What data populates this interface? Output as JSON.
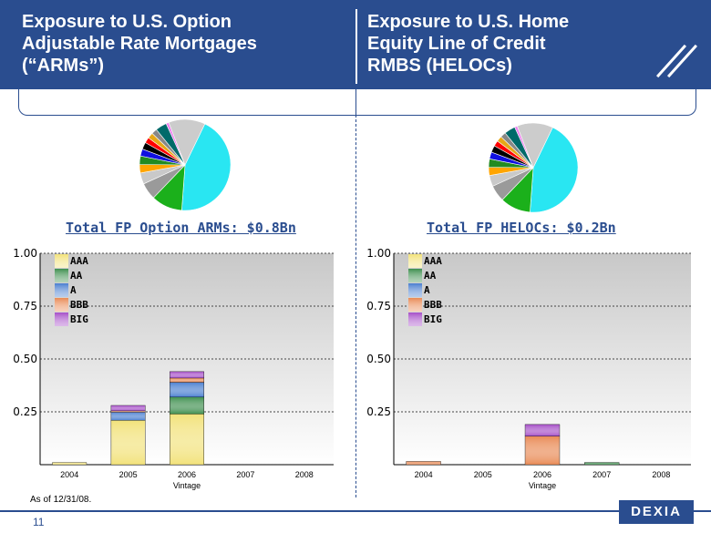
{
  "header": {
    "left_title": [
      "Exposure to U.S. Option",
      "Adjustable Rate Mortgages",
      "(“ARMs”)"
    ],
    "right_title": [
      "Exposure to U.S. Home",
      "Equity Line of Credit",
      "RMBS (HELOCs)"
    ]
  },
  "left": {
    "section_title": "Total FP Option ARMs: $0.8Bn"
  },
  "right": {
    "section_title": "Total FP HELOCs: $0.2Bn"
  },
  "footnote": "As of 12/31/08.",
  "page_number": "11",
  "logo_text": "DEXIA",
  "colors": {
    "brand": "#2a4d8f",
    "AAA": "#f2e27a",
    "AA": "#3e8f4e",
    "A": "#4a7fd0",
    "BBB": "#e98a55",
    "BIG": "#a64fc8"
  },
  "pie_colors": [
    "#29e6f2",
    "#1bb01b",
    "#9a9a9a",
    "#c9c9c9",
    "#ffa500",
    "#228b22",
    "#1010e0",
    "#000000",
    "#ff0000",
    "#e6a817",
    "#888888",
    "#006a6a",
    "#ee82ee",
    "#cccccc"
  ],
  "chart_data": [
    {
      "type": "pie",
      "values": [
        44,
        11,
        6,
        4,
        3,
        3,
        2.5,
        2.5,
        2,
        2,
        2,
        4,
        1,
        13
      ]
    },
    {
      "type": "bar",
      "stacked": true,
      "xlabel": "Vintage",
      "categories": [
        "2004",
        "2005",
        "2006",
        "2007",
        "2008"
      ],
      "y_ticks": [
        "0.25",
        "0.50",
        "0.75",
        "1.00"
      ],
      "ylim": [
        0,
        1.0
      ],
      "grid": true,
      "legend_position": "top-left",
      "series": [
        {
          "name": "AAA",
          "values": [
            0.01,
            0.21,
            0.24,
            0,
            0
          ]
        },
        {
          "name": "AA",
          "values": [
            0,
            0,
            0.08,
            0,
            0
          ]
        },
        {
          "name": "A",
          "values": [
            0,
            0.04,
            0.07,
            0,
            0
          ]
        },
        {
          "name": "BBB",
          "values": [
            0,
            0.005,
            0.02,
            0,
            0
          ]
        },
        {
          "name": "BIG",
          "values": [
            0,
            0.025,
            0.03,
            0,
            0
          ]
        }
      ]
    },
    {
      "type": "pie",
      "values": [
        44,
        11,
        6,
        4,
        3,
        3,
        2.5,
        2.5,
        2,
        2,
        2,
        4,
        1,
        13
      ]
    },
    {
      "type": "bar",
      "stacked": true,
      "xlabel": "Vintage",
      "categories": [
        "2004",
        "2005",
        "2006",
        "2007",
        "2008"
      ],
      "y_ticks": [
        "0.25",
        "0.50",
        "0.75",
        "1.00"
      ],
      "ylim": [
        0,
        1.0
      ],
      "grid": true,
      "legend_position": "top-left",
      "series": [
        {
          "name": "AAA",
          "values": [
            0,
            0,
            0,
            0,
            0
          ]
        },
        {
          "name": "AA",
          "values": [
            0,
            0,
            0,
            0.01,
            0
          ]
        },
        {
          "name": "A",
          "values": [
            0,
            0,
            0,
            0,
            0
          ]
        },
        {
          "name": "BBB",
          "values": [
            0.015,
            0,
            0.135,
            0,
            0
          ]
        },
        {
          "name": "BIG",
          "values": [
            0,
            0,
            0.055,
            0,
            0
          ]
        }
      ]
    }
  ]
}
